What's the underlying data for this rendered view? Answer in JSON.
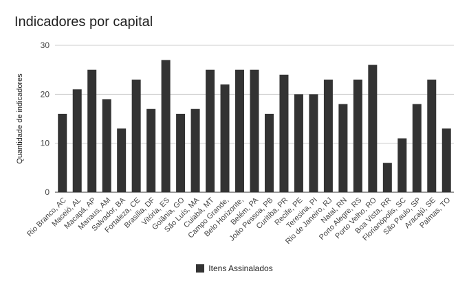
{
  "chart_data": {
    "type": "bar",
    "title": "Indicadores por capital",
    "xlabel": "",
    "ylabel": "Quantidade de indicadores",
    "ylim": [
      0,
      30
    ],
    "yticks": [
      "0",
      "10",
      "20",
      "30"
    ],
    "grid": true,
    "legend_position": "bottom",
    "bar_color": "#333333",
    "categories": [
      "Rio Branco, AC",
      "Maceió, AL",
      "Macapá, AP",
      "Manaus, AM",
      "Salvador, BA",
      "Fortaleza, CE",
      "Brasília, DF",
      "Vitória, ES",
      "Goiânia, GO",
      "São Luís, MA",
      "Cuiabá, MT",
      "Campo Grande,",
      "Belo Horizonte,",
      "Belém, PA",
      "João Pessoa, PB",
      "Curitiba, PR",
      "Recife, PE",
      "Teresina, PI",
      "Rio de Janeiro, RJ",
      "Natal, RN",
      "Porto Alegre, RS",
      "Porto Velho, RO",
      "Boa Vista, RR",
      "Florianópolis, SC",
      "São Paulo, SP",
      "Aracajú, SE",
      "Palmas, TO"
    ],
    "series": [
      {
        "name": "Itens Assinalados",
        "values": [
          16,
          21,
          25,
          19,
          13,
          23,
          17,
          27,
          16,
          17,
          25,
          22,
          25,
          25,
          16,
          24,
          20,
          20,
          23,
          18,
          23,
          26,
          6,
          11,
          18,
          23,
          13
        ]
      }
    ]
  }
}
